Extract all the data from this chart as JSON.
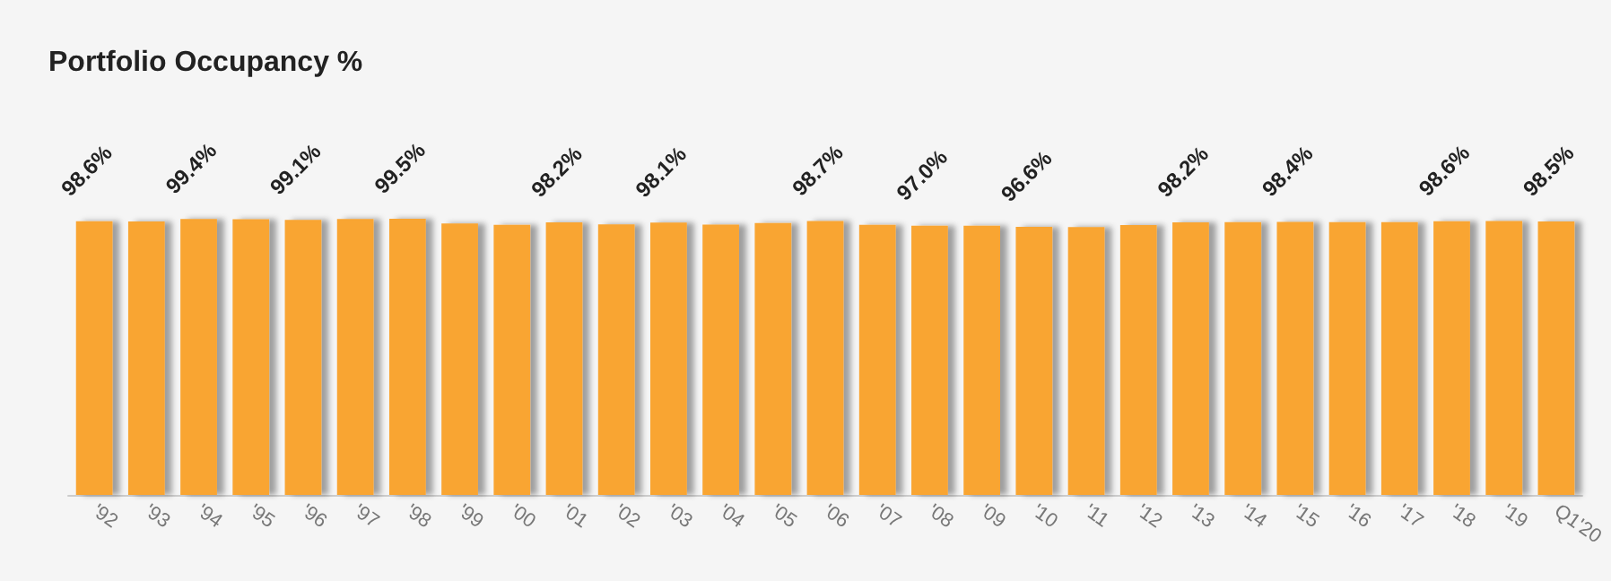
{
  "chart_data": {
    "type": "bar",
    "title": "Portfolio Occupancy %",
    "categories": [
      "'92",
      "'93",
      "'94",
      "'95",
      "'96",
      "'97",
      "'98",
      "'99",
      "'00",
      "'01",
      "'02",
      "'03",
      "'04",
      "'05",
      "'06",
      "'07",
      "'08",
      "'09",
      "'10",
      "'11",
      "'12",
      "'13",
      "'14",
      "'15",
      "'16",
      "'17",
      "'18",
      "'19",
      "Q1'20"
    ],
    "values": [
      98.6,
      98.5,
      99.4,
      99.3,
      99.1,
      99.4,
      99.5,
      97.8,
      97.3,
      98.2,
      97.5,
      98.1,
      97.4,
      98.0,
      98.7,
      97.3,
      97.0,
      97.0,
      96.6,
      96.5,
      97.2,
      98.2,
      98.3,
      98.4,
      98.3,
      98.3,
      98.6,
      98.7,
      98.5
    ],
    "value_labels": [
      "98.6%",
      null,
      "99.4%",
      null,
      "99.1%",
      null,
      "99.5%",
      null,
      null,
      "98.2%",
      null,
      "98.1%",
      null,
      null,
      "98.7%",
      null,
      "97.0%",
      null,
      "96.6%",
      null,
      null,
      "98.2%",
      null,
      "98.4%",
      null,
      null,
      "98.6%",
      null,
      "98.5%"
    ],
    "color": "#f9a533"
  }
}
